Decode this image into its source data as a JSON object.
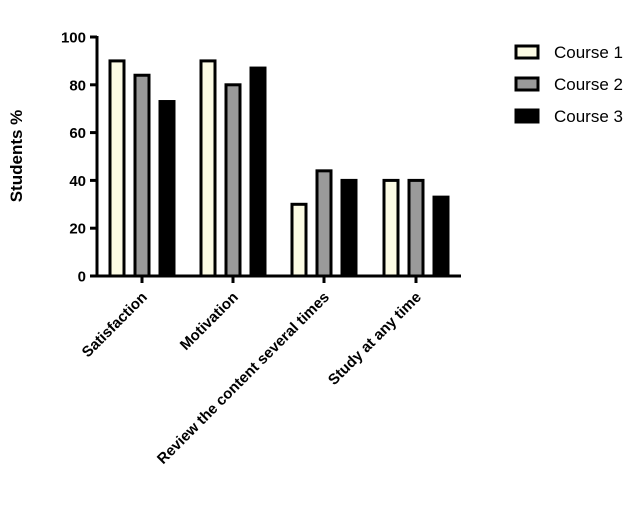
{
  "chart_data": {
    "type": "bar",
    "title": "",
    "xlabel": "",
    "ylabel": "Students %",
    "ylim": [
      0,
      100
    ],
    "yticks": [
      0,
      20,
      40,
      60,
      80,
      100
    ],
    "grid": false,
    "legend_position": "top-right",
    "categories": [
      "Satisfaction",
      "Motivation",
      "Review the content several times",
      "Study at any time"
    ],
    "series": [
      {
        "name": "Course 1",
        "color": "#fcfbe4",
        "values": [
          90,
          90,
          30,
          40
        ]
      },
      {
        "name": "Course 2",
        "color": "#9a9a9a",
        "values": [
          84,
          80,
          44,
          40
        ]
      },
      {
        "name": "Course 3",
        "color": "#000000",
        "values": [
          73,
          87,
          40,
          33
        ]
      }
    ]
  }
}
